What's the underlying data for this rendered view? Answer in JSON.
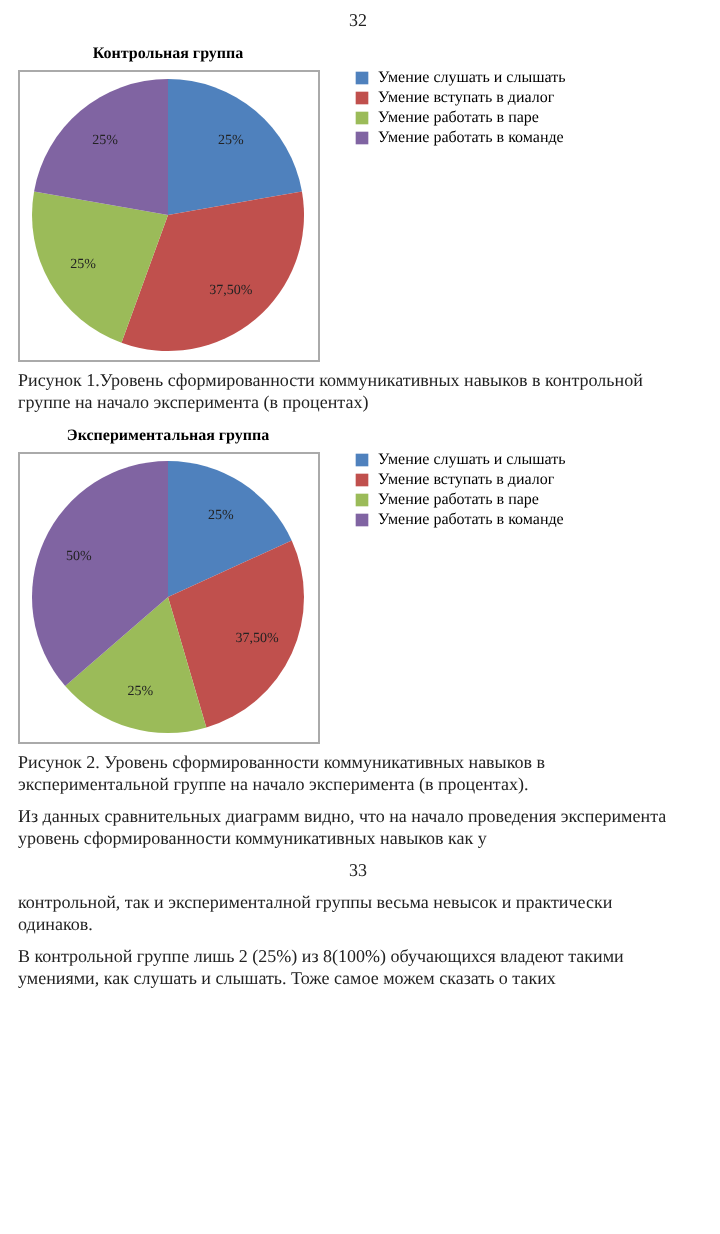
{
  "chart_data": [
    {
      "type": "pie",
      "title": "Контрольная группа",
      "categories": [
        "Умение  слушать и слышать",
        "Умение вступать в диалог",
        "Умение работать в паре",
        "Умение работать в команде"
      ],
      "values": [
        25,
        37.5,
        25,
        25
      ],
      "value_labels": [
        "25%",
        "37,50%",
        "25%",
        "25%"
      ],
      "colors": [
        "#4f81bd",
        "#c0504d",
        "#9bbb59",
        "#8064a2"
      ],
      "legend": "right",
      "annotations": [
        "32",
        "Рисунок 1.Уровень сформированности коммуникативных навыков в контрольной группе на начало эксперимента (в процентах)"
      ]
    },
    {
      "type": "pie",
      "title": "Экспериментальная группа",
      "categories": [
        "Умение слушать и слышать",
        "Умение вступать в диалог",
        "Умение работать в паре",
        "Умение работать в команде"
      ],
      "values": [
        25,
        37.5,
        25,
        50
      ],
      "value_labels": [
        "25%",
        "37,50%",
        "25%",
        "50%"
      ],
      "colors": [
        "#4f81bd",
        "#c0504d",
        "#9bbb59",
        "#8064a2"
      ],
      "legend": "right",
      "annotations": [
        "Рисунок 2. Уровень сформированности коммуникативных навыков в экспериментальной группе на начало эксперимента (в процентах).",
        "Из данных сравнительных диаграмм видно, что на начало проведения эксперимента уровень сформированности коммуникативных навыков как у",
        "33",
        "контрольной, так и эксперименталной группы весьма невысок и практически одинаков.",
        "В контрольной группе лишь 2 (25%) из 8(100%) обучающихся владеют такими умениями, как слушать и слышать. Тоже самое можем сказать о таких"
      ]
    }
  ]
}
